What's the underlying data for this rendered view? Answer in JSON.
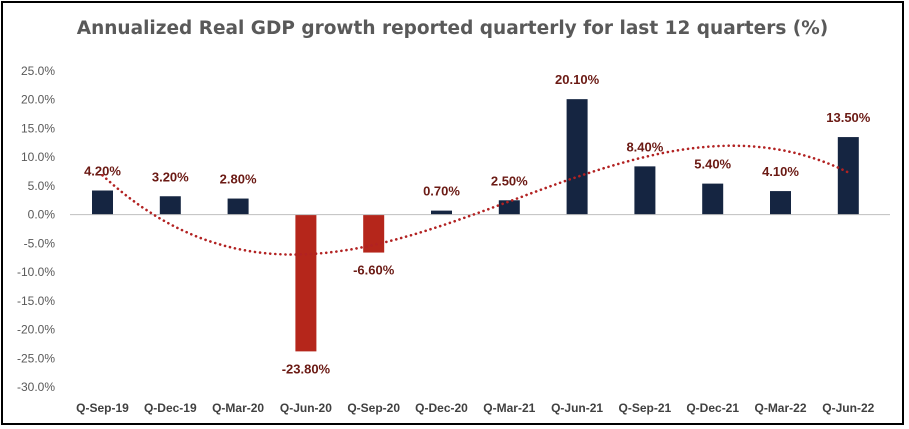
{
  "chart_data": {
    "type": "bar",
    "title": "Annualized Real GDP growth reported quarterly for last 12 quarters (%)",
    "xlabel": "",
    "ylabel": "",
    "ylim": [
      -30,
      25
    ],
    "yticks": [
      "25.0%",
      "20.0%",
      "15.0%",
      "10.0%",
      "5.0%",
      "0.0%",
      "-5.0%",
      "-10.0%",
      "-15.0%",
      "-20.0%",
      "-25.0%",
      "-30.0%"
    ],
    "ytick_values": [
      25,
      20,
      15,
      10,
      5,
      0,
      -5,
      -10,
      -15,
      -20,
      -25,
      -30
    ],
    "categories": [
      "Q-Sep-19",
      "Q-Dec-19",
      "Q-Mar-20",
      "Q-Jun-20",
      "Q-Sep-20",
      "Q-Dec-20",
      "Q-Mar-21",
      "Q-Jun-21",
      "Q-Sep-21",
      "Q-Dec-21",
      "Q-Mar-22",
      "Q-Jun-22"
    ],
    "values": [
      4.2,
      3.2,
      2.8,
      -23.8,
      -6.6,
      0.7,
      2.5,
      20.1,
      8.4,
      5.4,
      4.1,
      13.5
    ],
    "data_labels": [
      "4.20%",
      "3.20%",
      "2.80%",
      "-23.80%",
      "-6.60%",
      "0.70%",
      "2.50%",
      "20.10%",
      "8.40%",
      "5.40%",
      "4.10%",
      "13.50%"
    ],
    "trendline": {
      "type": "polynomial",
      "style": "dotted",
      "color": "#b22222"
    },
    "grid": false,
    "legend": "none",
    "colors": {
      "positive": "#152541",
      "negative": "#b5261b",
      "label": "#6b1a14",
      "trend": "#b22222",
      "axis_text": "#595959"
    }
  }
}
